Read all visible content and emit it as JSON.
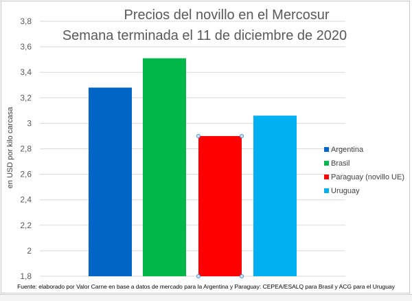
{
  "chart_data": {
    "type": "bar",
    "title": [
      "Precios del novillo en el Mercosur",
      "Semana terminada el 11 de diciembre de 2020"
    ],
    "xlabel": "",
    "ylabel": "en USD por kilo carcasa",
    "ylim": [
      1.8,
      3.8
    ],
    "yticks": [
      "1,8",
      "2",
      "2,2",
      "2,4",
      "2,6",
      "2,8",
      "3",
      "3,2",
      "3,4",
      "3,6",
      "3,8"
    ],
    "grid": true,
    "legend_position": "right",
    "series": [
      {
        "name": "Argentina",
        "value": 3.28,
        "color": "#0066c5"
      },
      {
        "name": "Brasil",
        "value": 3.51,
        "color": "#00b84a"
      },
      {
        "name": "Paraguay (novillo UE)",
        "value": 2.9,
        "color": "#ff0000"
      },
      {
        "name": "Uruguay",
        "value": 3.06,
        "color": "#00b0f0"
      }
    ],
    "source": "Fuente: elaborado por Valor Carne en base a datos de mercado para la Argentina y Paraguay: CEPEA/ESALQ para Brasil y ACG para el Uruguay"
  }
}
